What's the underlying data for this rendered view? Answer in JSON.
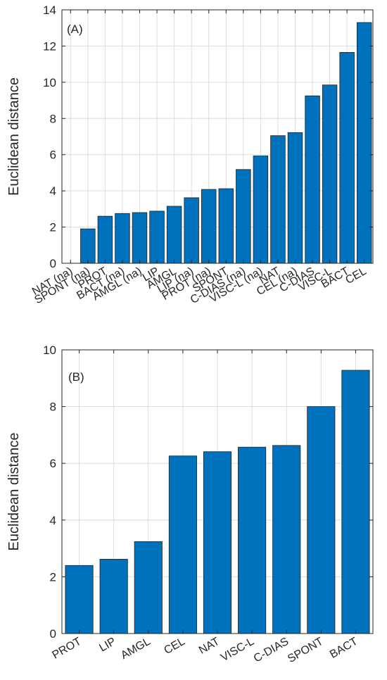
{
  "chart_data": [
    {
      "type": "bar",
      "panel_label": "(A)",
      "ylabel": "Euclidean distance",
      "xlabel": "",
      "ylim": [
        0,
        14
      ],
      "yticks": [
        0,
        2,
        4,
        6,
        8,
        10,
        12,
        14
      ],
      "grid": true,
      "bar_color": "#0072BD",
      "categories": [
        "NAT (na)",
        "SPONT (na)",
        "PROT",
        "BACT (na)",
        "AMGL (na)",
        "LIP",
        "AMGL",
        "LIP (na)",
        "PROT (na)",
        "SPONT",
        "C-DIAS (na)",
        "VISC-L (na)",
        "NAT",
        "CEL (na)",
        "C-DIAS",
        "VISC-L",
        "BACT",
        "CEL"
      ],
      "values": [
        0,
        1.9,
        2.6,
        2.75,
        2.8,
        2.88,
        3.15,
        3.62,
        4.08,
        4.12,
        5.18,
        5.93,
        7.05,
        7.22,
        9.25,
        9.85,
        11.65,
        13.3
      ]
    },
    {
      "type": "bar",
      "panel_label": "(B)",
      "ylabel": "Euclidean distance",
      "xlabel": "",
      "ylim": [
        0,
        10
      ],
      "yticks": [
        0,
        2,
        4,
        6,
        8,
        10
      ],
      "grid": true,
      "bar_color": "#0072BD",
      "categories": [
        "PROT",
        "LIP",
        "AMGL",
        "CEL",
        "NAT",
        "VISC-L",
        "C-DIAS",
        "SPONT",
        "BACT"
      ],
      "values": [
        2.4,
        2.62,
        3.24,
        6.26,
        6.41,
        6.57,
        6.63,
        8.0,
        9.28
      ]
    }
  ]
}
